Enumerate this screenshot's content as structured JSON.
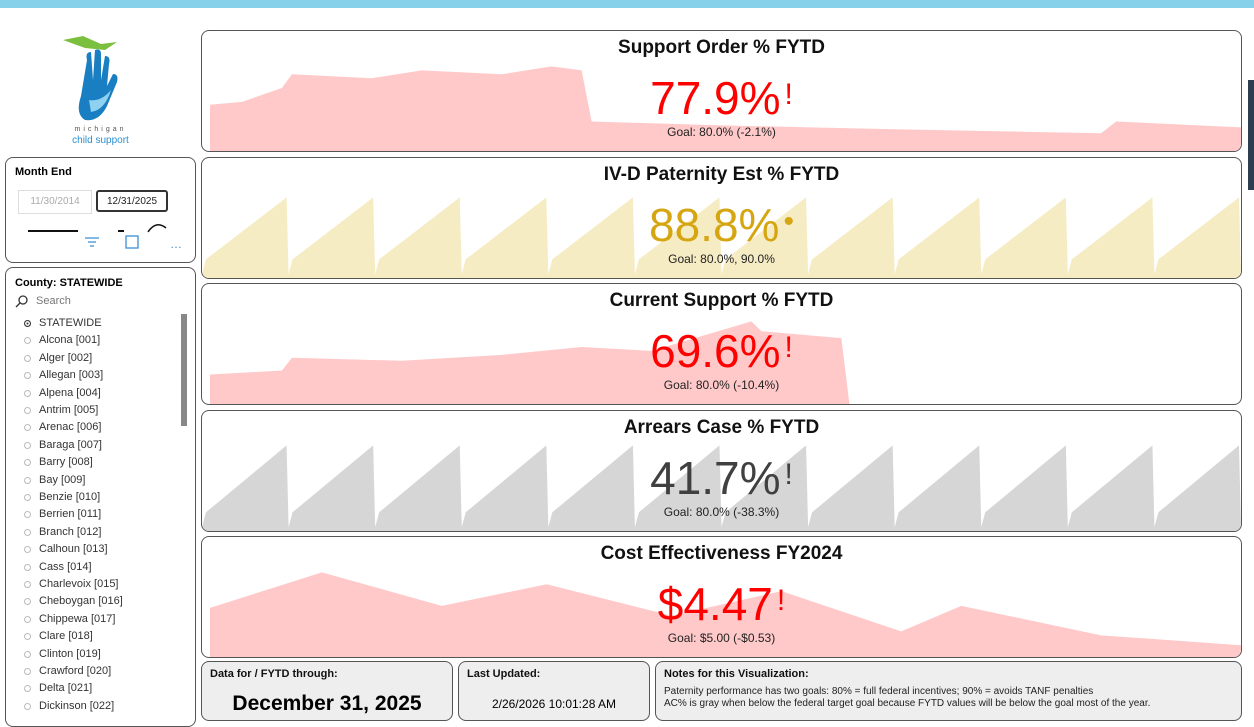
{
  "logo": {
    "line1": "michigan",
    "line2": "child support"
  },
  "month_end": {
    "label": "Month End",
    "start": "11/30/2014",
    "end": "12/31/2025"
  },
  "county": {
    "label": "County: STATEWIDE",
    "search_placeholder": "Search",
    "items": [
      "STATEWIDE",
      "Alcona [001]",
      "Alger [002]",
      "Allegan [003]",
      "Alpena [004]",
      "Antrim [005]",
      "Arenac [006]",
      "Baraga [007]",
      "Barry [008]",
      "Bay [009]",
      "Benzie [010]",
      "Berrien [011]",
      "Branch [012]",
      "Calhoun [013]",
      "Cass [014]",
      "Charlevoix [015]",
      "Cheboygan [016]",
      "Chippewa [017]",
      "Clare [018]",
      "Clinton [019]",
      "Crawford [020]",
      "Delta [021]",
      "Dickinson [022]"
    ]
  },
  "kpis": [
    {
      "title": "Support Order % FYTD",
      "value": "77.9%",
      "indicator": "!",
      "goal": "Goal: 80.0% (-2.1%)"
    },
    {
      "title": "IV-D Paternity Est % FYTD",
      "value": "88.8%",
      "indicator": "•",
      "goal": "Goal: 80.0%, 90.0%"
    },
    {
      "title": "Current Support % FYTD",
      "value": "69.6%",
      "indicator": "!",
      "goal": "Goal: 80.0% (-10.4%)"
    },
    {
      "title": "Arrears Case % FYTD",
      "value": "41.7%",
      "indicator": "!",
      "goal": "Goal: 80.0% (-38.3%)"
    },
    {
      "title": "Cost Effectiveness FY2024",
      "value": "$4.47",
      "indicator": "!",
      "goal": "Goal: $5.00 (-$0.53)"
    }
  ],
  "footer": {
    "data_for": {
      "label": "Data for / FYTD through:",
      "value": "December 31, 2025"
    },
    "last_updated": {
      "label": "Last Updated:",
      "value": "2/26/2026 10:01:28 AM"
    },
    "notes": {
      "label": "Notes for this Visualization:",
      "lines": [
        "Paternity performance has two goals: 80% = full federal incentives; 90% = avoids TANF penalties",
        "AC% is gray when below the federal target goal because FYTD values will be below the goal most of the year."
      ]
    }
  }
}
